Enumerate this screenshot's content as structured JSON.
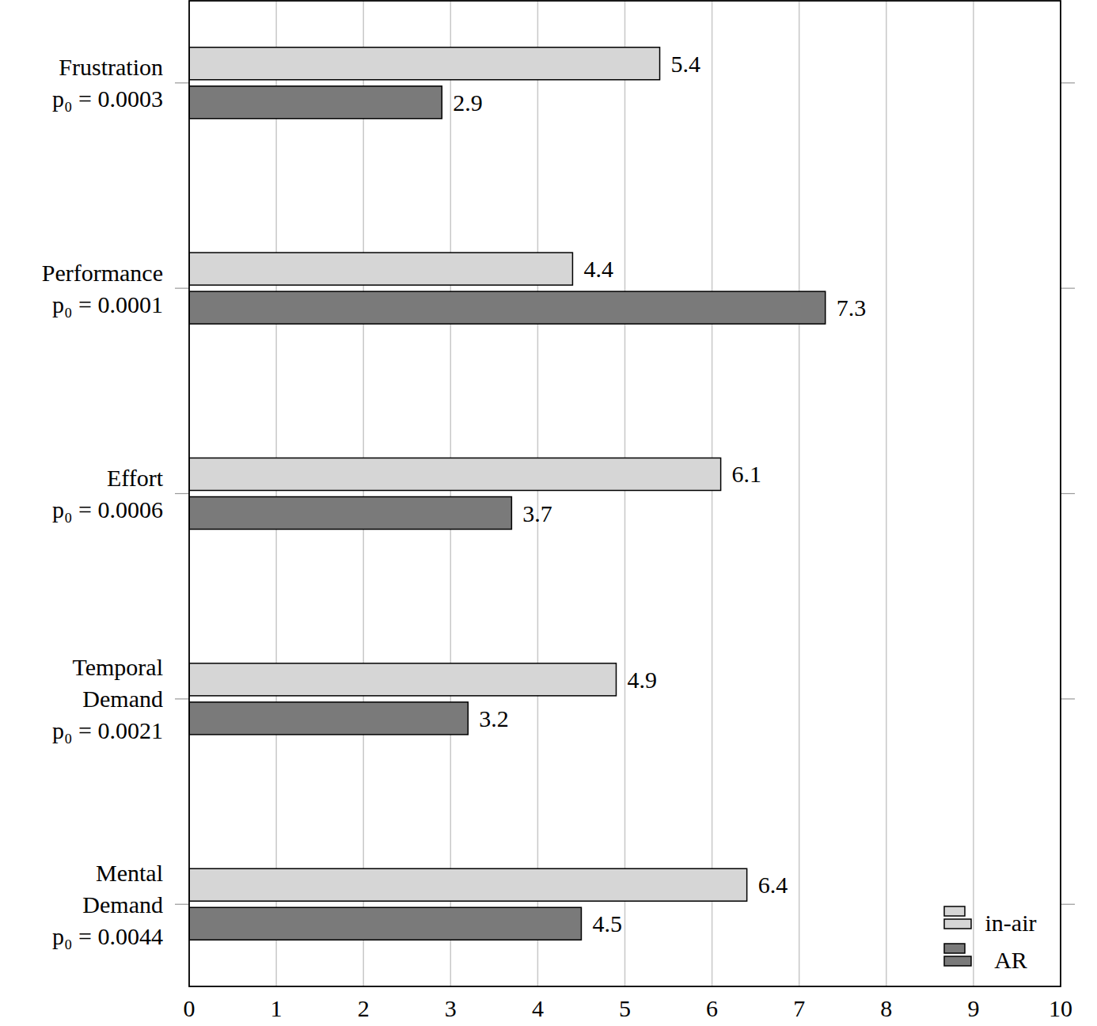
{
  "chart_data": {
    "type": "bar",
    "orientation": "horizontal",
    "categories": [
      "Frustration\np₀ = 0.0003",
      "Performance\np₀ = 0.0001",
      "Effort\np₀ = 0.0006",
      "Temporal\nDemand\np₀ = 0.0021",
      "Mental\nDemand\np₀ = 0.0044"
    ],
    "series": [
      {
        "name": "in-air",
        "color": "#d6d6d6",
        "values": [
          5.4,
          4.4,
          6.1,
          4.9,
          6.4
        ]
      },
      {
        "name": "AR",
        "color": "#7a7a7a",
        "values": [
          2.9,
          7.3,
          3.7,
          3.2,
          4.5
        ]
      }
    ],
    "xlim": [
      0,
      10
    ],
    "xticks": [
      0,
      1,
      2,
      3,
      4,
      5,
      6,
      7,
      8,
      9,
      10
    ],
    "grid": true,
    "data_labels": true,
    "legend": "lower right"
  }
}
